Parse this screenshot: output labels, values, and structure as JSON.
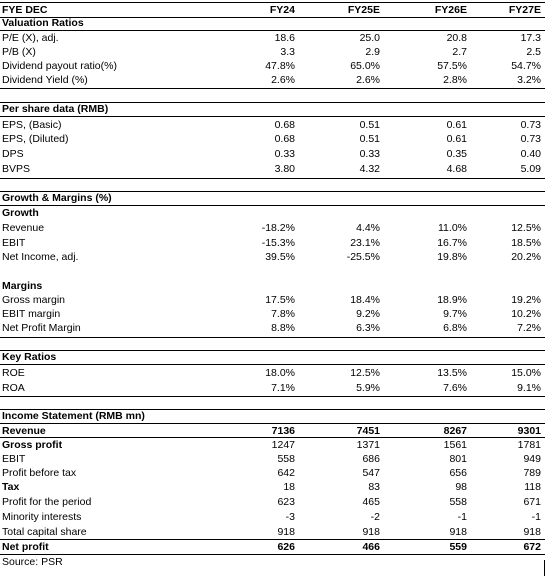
{
  "header": {
    "label": "FYE DEC",
    "years": [
      "FY24",
      "FY25E",
      "FY26E",
      "FY27E"
    ]
  },
  "sections": [
    {
      "title": "Valuation Ratios",
      "rows": [
        {
          "label": "P/E (X), adj.",
          "values": [
            "18.6",
            "25.0",
            "20.8",
            "17.3"
          ]
        },
        {
          "label": "P/B (X)",
          "values": [
            "3.3",
            "2.9",
            "2.7",
            "2.5"
          ]
        },
        {
          "label": "Dividend payout ratio(%)",
          "values": [
            "47.8%",
            "65.0%",
            "57.5%",
            "54.7%"
          ]
        },
        {
          "label": "Dividend Yield (%)",
          "values": [
            "2.6%",
            "2.6%",
            "2.8%",
            "3.2%"
          ]
        }
      ]
    },
    {
      "title": "Per share data (RMB)",
      "rows": [
        {
          "label": "EPS, (Basic)",
          "values": [
            "0.68",
            "0.51",
            "0.61",
            "0.73"
          ]
        },
        {
          "label": "EPS, (Diluted)",
          "values": [
            "0.68",
            "0.51",
            "0.61",
            "0.73"
          ]
        },
        {
          "label": "DPS",
          "values": [
            "0.33",
            "0.33",
            "0.35",
            "0.40"
          ]
        },
        {
          "label": "BVPS",
          "values": [
            "3.80",
            "4.32",
            "4.68",
            "5.09"
          ]
        }
      ]
    },
    {
      "title": "Growth & Margins (%)",
      "groups": [
        {
          "title": "Growth",
          "rows": [
            {
              "label": "Revenue",
              "values": [
                "-18.2%",
                "4.4%",
                "11.0%",
                "12.5%"
              ]
            },
            {
              "label": "EBIT",
              "values": [
                "-15.3%",
                "23.1%",
                "16.7%",
                "18.5%"
              ]
            },
            {
              "label": "Net Income, adj.",
              "values": [
                "39.5%",
                "-25.5%",
                "19.8%",
                "20.2%"
              ]
            }
          ]
        },
        {
          "title": "Margins",
          "rows": [
            {
              "label": "Gross margin",
              "values": [
                "17.5%",
                "18.4%",
                "18.9%",
                "19.2%"
              ]
            },
            {
              "label": "EBIT margin",
              "values": [
                "7.8%",
                "9.2%",
                "9.7%",
                "10.2%"
              ]
            },
            {
              "label": "Net Profit Margin",
              "values": [
                "8.8%",
                "6.3%",
                "6.8%",
                "7.2%"
              ]
            }
          ]
        }
      ]
    },
    {
      "title": "Key Ratios",
      "rows": [
        {
          "label": "ROE",
          "values": [
            "18.0%",
            "12.5%",
            "13.5%",
            "15.0%"
          ]
        },
        {
          "label": "ROA",
          "values": [
            "7.1%",
            "5.9%",
            "7.6%",
            "9.1%"
          ]
        }
      ]
    },
    {
      "title": "Income Statement (RMB mn)",
      "rows": [
        {
          "label": "Revenue",
          "values": [
            "7136",
            "7451",
            "8267",
            "9301"
          ],
          "bold": true
        },
        {
          "label": "Gross profit",
          "values": [
            "1247",
            "1371",
            "1561",
            "1781"
          ],
          "bold": true
        },
        {
          "label": "EBIT",
          "values": [
            "558",
            "686",
            "801",
            "949"
          ]
        },
        {
          "label": "Profit before tax",
          "values": [
            "642",
            "547",
            "656",
            "789"
          ]
        },
        {
          "label": "Tax",
          "values": [
            "18",
            "83",
            "98",
            "118"
          ],
          "bold": true
        },
        {
          "label": "Profit for the period",
          "values": [
            "623",
            "465",
            "558",
            "671"
          ]
        },
        {
          "label": "Minority interests",
          "values": [
            "-3",
            "-2",
            "-1",
            "-1"
          ]
        },
        {
          "label": "Total capital share",
          "values": [
            "918",
            "918",
            "918",
            "918"
          ]
        },
        {
          "label": "Net profit",
          "values": [
            "626",
            "466",
            "559",
            "672"
          ],
          "bold": true
        }
      ]
    }
  ],
  "footer": {
    "source": "Source: PSR"
  }
}
